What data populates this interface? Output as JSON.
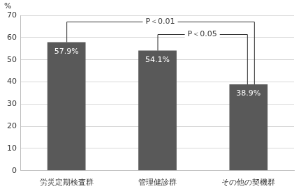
{
  "chart_data": {
    "type": "bar",
    "y_label": "%",
    "categories": [
      "労災定期検査群",
      "管理健診群",
      "その他の契機群"
    ],
    "values": [
      57.9,
      54.1,
      38.9
    ],
    "value_labels": [
      "57.9%",
      "54.1%",
      "38.9%"
    ],
    "data_labels": true,
    "color": "#595959",
    "ylim": [
      0,
      70
    ],
    "yticks": [
      0,
      10,
      20,
      30,
      40,
      50,
      60,
      70
    ],
    "grid": true,
    "annotations": [
      {
        "text": "P＜0.01",
        "between": [
          "労災定期検査群",
          "その他の契機群"
        ]
      },
      {
        "text": "P＜0.05",
        "between": [
          "管理健診群",
          "その他の契機群"
        ]
      }
    ]
  }
}
